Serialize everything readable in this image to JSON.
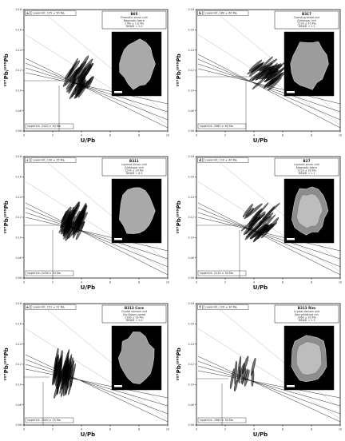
{
  "figure": {
    "panels": [
      {
        "letter": "a",
        "sample": "B05",
        "legend_lines": [
          "Prismatic zircon unit",
          "Magmatic fabric",
          "1 Ma ± 1.0 Ma",
          "MSWD = 1.0"
        ],
        "box_top": "Lower-int. 125 ± 50 Ma",
        "box_bottom": "Upper-int. 2120 ± 40 Ma",
        "grain": "cyan"
      },
      {
        "letter": "b",
        "sample": "B317",
        "legend_lines": [
          "Coarse-grained unit",
          "K-feldspar rich",
          "2130 ± 45 Ma",
          "MSWD = 1.2"
        ],
        "box_top": "Lower-int. 180 ± 60 Ma",
        "box_bottom": "Upper-int. 2080 ± 60 Ma",
        "grain": "green"
      },
      {
        "letter": "c",
        "sample": "B311",
        "legend_lines": [
          "Layered zircon unit",
          "K-feldspar rich",
          "2240 ± 20 Ma",
          "MSWD = 0.9"
        ],
        "box_top": "Lower-int. 130 ± 25 Ma",
        "box_bottom": "Upper-int. 2238 ± 20 Ma",
        "grain": "cyan"
      },
      {
        "letter": "d",
        "sample": "B27",
        "legend_lines": [
          "Layered zircon unit",
          "Magmatic fabric",
          "2110 ± 30 Ma",
          "MSWD = 1.1"
        ],
        "box_top": "Lower-int. 110 ± 40 Ma",
        "box_bottom": "Upper-int. 2115 ± 30 Ma",
        "grain": "rim"
      },
      {
        "letter": "e",
        "sample": "B313 Core",
        "legend_lines": [
          "Crystal domain unit",
          "Oscillatory zoned",
          "2160 ± 30 Ma",
          "MSWD = 1.0"
        ],
        "box_top": "Lower-int. 151 ± 21 Ma",
        "box_bottom": "Upper-int. 2140 ± 25 Ma",
        "grain": "green"
      },
      {
        "letter": "f",
        "sample": "B313 Rim",
        "legend_lines": [
          "Crystal domain unit",
          "Recrystallized rim",
          "1960 ± 30 Ma",
          "MSWD = 1.3"
        ],
        "box_top": "Lower-int. 120 ± 30 Ma",
        "box_bottom": "Upper-int. 1960 ± 30 Ma",
        "grain": "rim"
      }
    ],
    "y_label": "²⁰⁷Pb/²⁰⁶Pb",
    "x_label": "U/Pb",
    "colors": {
      "ink": "#1a1a1a",
      "plot_border": "#111111",
      "light_guides": "#b8b8b8",
      "fan": "#000000"
    }
  },
  "chart_data": [
    {
      "type": "scatter",
      "panel": "a",
      "xlim": [
        0,
        10
      ],
      "ylim": [
        0.06,
        0.18
      ],
      "x_ticks": [
        "0",
        "2",
        "4",
        "6",
        "8",
        "10"
      ],
      "y_ticks": [
        "0.06",
        "0.08",
        "0.10",
        "0.12",
        "0.14",
        "0.16",
        "0.18"
      ]
    },
    {
      "type": "scatter",
      "panel": "b",
      "xlim": [
        0,
        10
      ],
      "ylim": [
        0.06,
        0.18
      ],
      "x_ticks": [
        "0",
        "2",
        "4",
        "6",
        "8",
        "10"
      ],
      "y_ticks": [
        "0.06",
        "0.08",
        "0.10",
        "0.12",
        "0.14",
        "0.16",
        "0.18"
      ]
    },
    {
      "type": "scatter",
      "panel": "c",
      "xlim": [
        0,
        10
      ],
      "ylim": [
        0.06,
        0.18
      ],
      "x_ticks": [
        "0",
        "2",
        "4",
        "6",
        "8",
        "10"
      ],
      "y_ticks": [
        "0.06",
        "0.08",
        "0.10",
        "0.12",
        "0.14",
        "0.16",
        "0.18"
      ]
    },
    {
      "type": "scatter",
      "panel": "d",
      "xlim": [
        0,
        10
      ],
      "ylim": [
        0.06,
        0.18
      ],
      "x_ticks": [
        "0",
        "2",
        "4",
        "6",
        "8",
        "10"
      ],
      "y_ticks": [
        "0.06",
        "0.08",
        "0.10",
        "0.12",
        "0.14",
        "0.16",
        "0.18"
      ]
    },
    {
      "type": "scatter",
      "panel": "e",
      "xlim": [
        0,
        10
      ],
      "ylim": [
        0.06,
        0.18
      ],
      "x_ticks": [
        "0",
        "2",
        "4",
        "6",
        "8",
        "10"
      ],
      "y_ticks": [
        "0.06",
        "0.08",
        "0.10",
        "0.12",
        "0.14",
        "0.16",
        "0.18"
      ]
    },
    {
      "type": "scatter",
      "panel": "f",
      "xlim": [
        0,
        10
      ],
      "ylim": [
        0.06,
        0.18
      ],
      "x_ticks": [
        "0",
        "2",
        "4",
        "6",
        "8",
        "10"
      ],
      "y_ticks": [
        "0.06",
        "0.08",
        "0.10",
        "0.12",
        "0.14",
        "0.16",
        "0.18"
      ]
    }
  ]
}
